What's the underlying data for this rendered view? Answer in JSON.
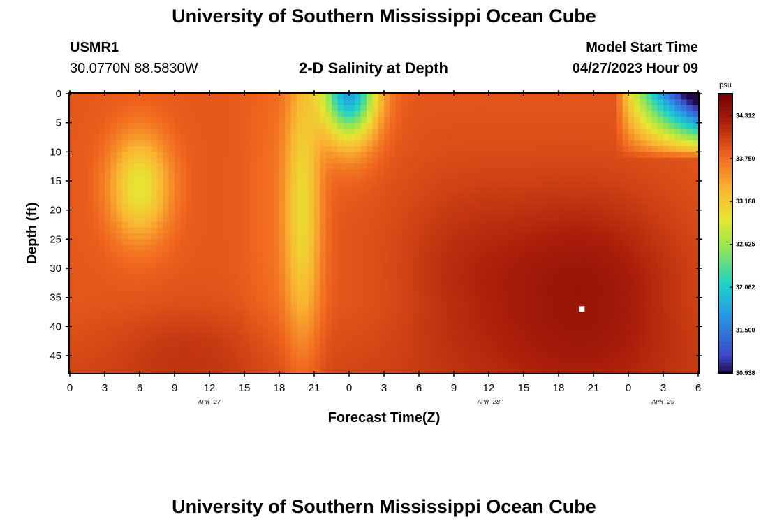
{
  "header": {
    "title_top": "University of Southern Mississippi Ocean Cube",
    "station_id": "USMR1",
    "coordinates": "30.0770N  88.5830W",
    "plot_title": "2-D Salinity at Depth",
    "model_start_label": "Model Start Time",
    "model_start_value": "04/27/2023 Hour 09",
    "title_bottom": "University of Southern Mississippi Ocean Cube"
  },
  "chart_data": {
    "type": "heatmap",
    "title": "2-D Salinity at Depth",
    "xlabel": "Forecast Time(Z)",
    "ylabel": "Depth (ft)",
    "x_tick_labels": [
      "0",
      "3",
      "6",
      "9",
      "12",
      "15",
      "18",
      "21",
      "0",
      "3",
      "6",
      "9",
      "12",
      "15",
      "18",
      "21",
      "0",
      "3",
      "6"
    ],
    "x_range_hours": [
      0,
      54
    ],
    "y_ticks": [
      0,
      5,
      10,
      15,
      20,
      25,
      30,
      35,
      40,
      45
    ],
    "y_range": [
      0,
      48
    ],
    "y_inverted": true,
    "date_labels": [
      {
        "text": "APR 27",
        "hour": 12
      },
      {
        "text": "APR 28",
        "hour": 36
      },
      {
        "text": "APR 29",
        "hour": 51
      }
    ],
    "colorbar": {
      "unit": "psu",
      "min": 30.938,
      "max": 34.6,
      "ticks": [
        "34.312",
        "33.750",
        "33.188",
        "32.625",
        "32.062",
        "31.500",
        "30.938"
      ],
      "tick_values": [
        34.312,
        33.75,
        33.188,
        32.625,
        32.062,
        31.5,
        30.938
      ]
    },
    "salinity_estimates_psu": [
      {
        "hour": 6,
        "depth_ft": 15,
        "value": 33.3
      },
      {
        "hour": 24,
        "depth_ft": 2,
        "value": 31.0
      },
      {
        "hour": 24,
        "depth_ft": 10,
        "value": 32.4
      },
      {
        "hour": 44,
        "depth_ft": 37,
        "value": 34.6
      },
      {
        "hour": 54,
        "depth_ft": 2,
        "value": 31.1
      },
      {
        "hour": 0,
        "depth_ft": 45,
        "value": 34.3
      }
    ],
    "marker": {
      "hour": 44,
      "depth_ft": 37
    }
  }
}
